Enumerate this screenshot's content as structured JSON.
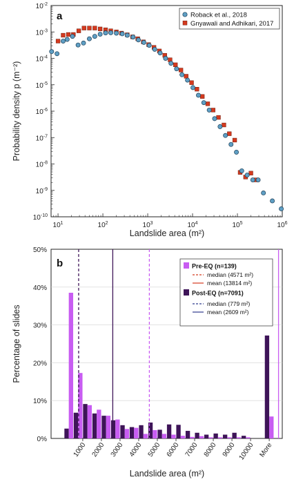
{
  "chart_data": [
    {
      "panel": "a",
      "type": "scatter",
      "xlabel": "Landslide area (m²)",
      "ylabel": "Probability density p (m⁻²)",
      "xscale": "log",
      "yscale": "log",
      "xlim": [
        7,
        1000000
      ],
      "ylim": [
        1e-10,
        0.01
      ],
      "x_ticks": [
        {
          "value": 10,
          "base": "10",
          "exp": "1"
        },
        {
          "value": 100,
          "base": "10",
          "exp": "2"
        },
        {
          "value": 1000,
          "base": "10",
          "exp": "3"
        },
        {
          "value": 10000,
          "base": "10",
          "exp": "4"
        },
        {
          "value": 100000,
          "base": "10",
          "exp": "5"
        },
        {
          "value": 1000000,
          "base": "10",
          "exp": "6"
        }
      ],
      "y_ticks": [
        {
          "value": 1e-10,
          "base": "10",
          "exp": "-10"
        },
        {
          "value": 1e-09,
          "base": "10",
          "exp": "-9"
        },
        {
          "value": 1e-08,
          "base": "10",
          "exp": "-8"
        },
        {
          "value": 1e-07,
          "base": "10",
          "exp": "-7"
        },
        {
          "value": 1e-06,
          "base": "10",
          "exp": "-6"
        },
        {
          "value": 1e-05,
          "base": "10",
          "exp": "-5"
        },
        {
          "value": 0.0001,
          "base": "10",
          "exp": "-4"
        },
        {
          "value": 0.001,
          "base": "10",
          "exp": "-3"
        },
        {
          "value": 0.01,
          "base": "10",
          "exp": "-2"
        }
      ],
      "legend_position": "top-right",
      "series": [
        {
          "name": "Roback et al., 2018",
          "marker": "circle",
          "color": "#5f9fc4",
          "points": [
            [
              7.2,
              0.00018
            ],
            [
              9.5,
              0.00015
            ],
            [
              13,
              0.00045
            ],
            [
              16,
              0.00052
            ],
            [
              21,
              0.00068
            ],
            [
              28,
              0.00032
            ],
            [
              37,
              0.00038
            ],
            [
              50,
              0.00055
            ],
            [
              66,
              0.00068
            ],
            [
              87,
              0.00082
            ],
            [
              115,
              0.00092
            ],
            [
              150,
              0.00093
            ],
            [
              200,
              0.0009
            ],
            [
              270,
              0.00085
            ],
            [
              350,
              0.00075
            ],
            [
              470,
              0.00064
            ],
            [
              620,
              0.0005
            ],
            [
              820,
              0.0004
            ],
            [
              1080,
              0.00031
            ],
            [
              1430,
              0.00022
            ],
            [
              1890,
              0.00016
            ],
            [
              2500,
              0.0001
            ],
            [
              3300,
              6.5e-05
            ],
            [
              4400,
              4e-05
            ],
            [
              5800,
              2.4e-05
            ],
            [
              7700,
              1.5e-05
            ],
            [
              10200,
              7.8e-06
            ],
            [
              13500,
              4e-06
            ],
            [
              17800,
              2.1e-06
            ],
            [
              23500,
              1.1e-06
            ],
            [
              31000,
              5.2e-07
            ],
            [
              41000,
              2.6e-07
            ],
            [
              54000,
              1.2e-07
            ],
            [
              72000,
              5.5e-08
            ],
            [
              95000,
              2.8e-08
            ],
            [
              125000,
              5.5e-09
            ],
            [
              165000,
              3.8e-09
            ],
            [
              220000,
              2.5e-09
            ],
            [
              290000,
              2.5e-09
            ],
            [
              380000,
              8e-10
            ],
            [
              600000,
              4e-10
            ],
            [
              950000,
              2e-10
            ]
          ]
        },
        {
          "name": "Gnyawali and Adhikari, 2017",
          "marker": "square",
          "color": "#d43a1f",
          "points": [
            [
              10,
              0.00045
            ],
            [
              13,
              0.00075
            ],
            [
              17,
              0.0008
            ],
            [
              22,
              0.0008
            ],
            [
              29,
              0.0011
            ],
            [
              38,
              0.0014
            ],
            [
              50,
              0.0014
            ],
            [
              66,
              0.0014
            ],
            [
              87,
              0.0013
            ],
            [
              115,
              0.0012
            ],
            [
              150,
              0.0011
            ],
            [
              200,
              0.001
            ],
            [
              260,
              0.0009
            ],
            [
              350,
              0.00078
            ],
            [
              460,
              0.00065
            ],
            [
              600,
              0.00055
            ],
            [
              800,
              0.00042
            ],
            [
              1050,
              0.00033
            ],
            [
              1380,
              0.00026
            ],
            [
              1820,
              0.00019
            ],
            [
              2400,
              0.00013
            ],
            [
              3150,
              8.8e-05
            ],
            [
              4150,
              5.7e-05
            ],
            [
              5500,
              3.6e-05
            ],
            [
              7200,
              2.1e-05
            ],
            [
              9500,
              1.2e-05
            ],
            [
              12500,
              6.8e-06
            ],
            [
              16500,
              3.6e-06
            ],
            [
              21800,
              1.9e-06
            ],
            [
              28700,
              1.1e-06
            ],
            [
              37800,
              5.8e-07
            ],
            [
              50000,
              3e-07
            ],
            [
              66000,
              1.4e-07
            ],
            [
              87000,
              8e-08
            ],
            [
              115000,
              4.8e-09
            ],
            [
              152000,
              3.2e-09
            ],
            [
              200000,
              4.5e-09
            ],
            [
              260000,
              2.5e-09
            ]
          ]
        }
      ]
    },
    {
      "panel": "b",
      "type": "bar",
      "xlabel": "Landslide area (m²)",
      "ylabel": "Percentage of slides",
      "ylim": [
        0,
        50
      ],
      "y_ticks": [
        "0%",
        "10%",
        "20%",
        "30%",
        "40%",
        "50%"
      ],
      "x_ticks": [
        {
          "label": "1000",
          "value": 1000
        },
        {
          "label": "2000",
          "value": 2000
        },
        {
          "label": "3000",
          "value": 3000
        },
        {
          "label": "4000",
          "value": 4000
        },
        {
          "label": "5000",
          "value": 5000
        },
        {
          "label": "6000",
          "value": 6000
        },
        {
          "label": "7000",
          "value": 7000
        },
        {
          "label": "8000",
          "value": 8000
        },
        {
          "label": "9000",
          "value": 9000
        },
        {
          "label": "10000",
          "value": 10000
        },
        {
          "label": "More",
          "value": 11000
        }
      ],
      "bin_centers": [
        250,
        750,
        1250,
        1750,
        2250,
        2750,
        3250,
        3750,
        4250,
        4750,
        5250,
        5750,
        6250,
        6750,
        7250,
        7750,
        8250,
        8750,
        9250,
        9750,
        11000
      ],
      "legend_position": "top-right",
      "series": [
        {
          "name": "Pre-EQ (n=139)",
          "color": "#c85cf2",
          "values": [
            38.5,
            17.3,
            8.8,
            7.6,
            6.0,
            5.0,
            2.5,
            2.8,
            1.2,
            2.2,
            1.2,
            1.0,
            0.7,
            0.4,
            0.6,
            0.3,
            0.3,
            0.3,
            0.3,
            0.3,
            5.8
          ]
        },
        {
          "name": "Post-EQ (n=7091)",
          "color": "#3e1458",
          "values": [
            2.6,
            6.8,
            9.1,
            6.6,
            6.0,
            4.8,
            3.5,
            3.0,
            3.5,
            4.2,
            2.3,
            3.7,
            3.6,
            2.0,
            1.5,
            1.0,
            1.3,
            1.0,
            1.5,
            0.7,
            27.2
          ]
        }
      ],
      "reference_lines": [
        {
          "group": "Pre-EQ (n=139)",
          "label": "median (4571 m²)",
          "value": 4571,
          "style": "dashed",
          "color": "#c85cf2",
          "legend_color": "#d43a1f"
        },
        {
          "group": "Pre-EQ (n=139)",
          "label": "mean (13814 m²)",
          "value": 13814,
          "style": "solid",
          "color": "#c85cf2",
          "legend_color": "#d43a1f"
        },
        {
          "group": "Post-EQ (n=7091)",
          "label": "median (779 m²)",
          "value": 779,
          "style": "dashed",
          "color": "#3e1458",
          "legend_color": "#2e3a8c"
        },
        {
          "group": "Post-EQ (n=7091)",
          "label": "mean (2609 m²)",
          "value": 2609,
          "style": "solid",
          "color": "#3e1458",
          "legend_color": "#2e3a8c"
        }
      ]
    }
  ]
}
